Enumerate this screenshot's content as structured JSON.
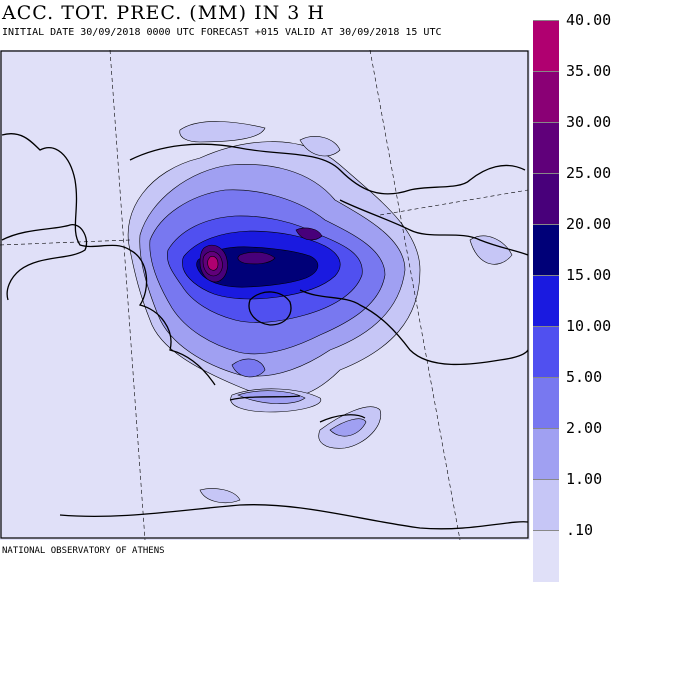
{
  "header": {
    "title": "ACC. TOT. PREC. (MM) IN 3 H",
    "subtitle": "INITIAL DATE 30/09/2018   0000 UTC  FORECAST +015 VALID AT  30/09/2018  15 UTC"
  },
  "footer": {
    "credit": "NATIONAL OBSERVATORY OF ATHENS"
  },
  "colors": {
    "background": "#e0e0f8",
    "land_outline": "#000000",
    "map_frame": "#000000",
    "grid_lines": "#000000"
  },
  "legend": {
    "items": [
      {
        "label": "40.00",
        "color": "#b00070"
      },
      {
        "label": "35.00",
        "color": "#8a0075"
      },
      {
        "label": "30.00",
        "color": "#60007a"
      },
      {
        "label": "25.00",
        "color": "#48007a"
      },
      {
        "label": "20.00",
        "color": "#000078"
      },
      {
        "label": "15.00",
        "color": "#1a1ae0"
      },
      {
        "label": "10.00",
        "color": "#5050f0"
      },
      {
        "label": "5.00",
        "color": "#7878f0"
      },
      {
        "label": "2.00",
        "color": "#a0a0f2"
      },
      {
        "label": "1.00",
        "color": "#c6c6f6"
      },
      {
        "label": ".10",
        "color": "#e0e0f8"
      }
    ]
  }
}
